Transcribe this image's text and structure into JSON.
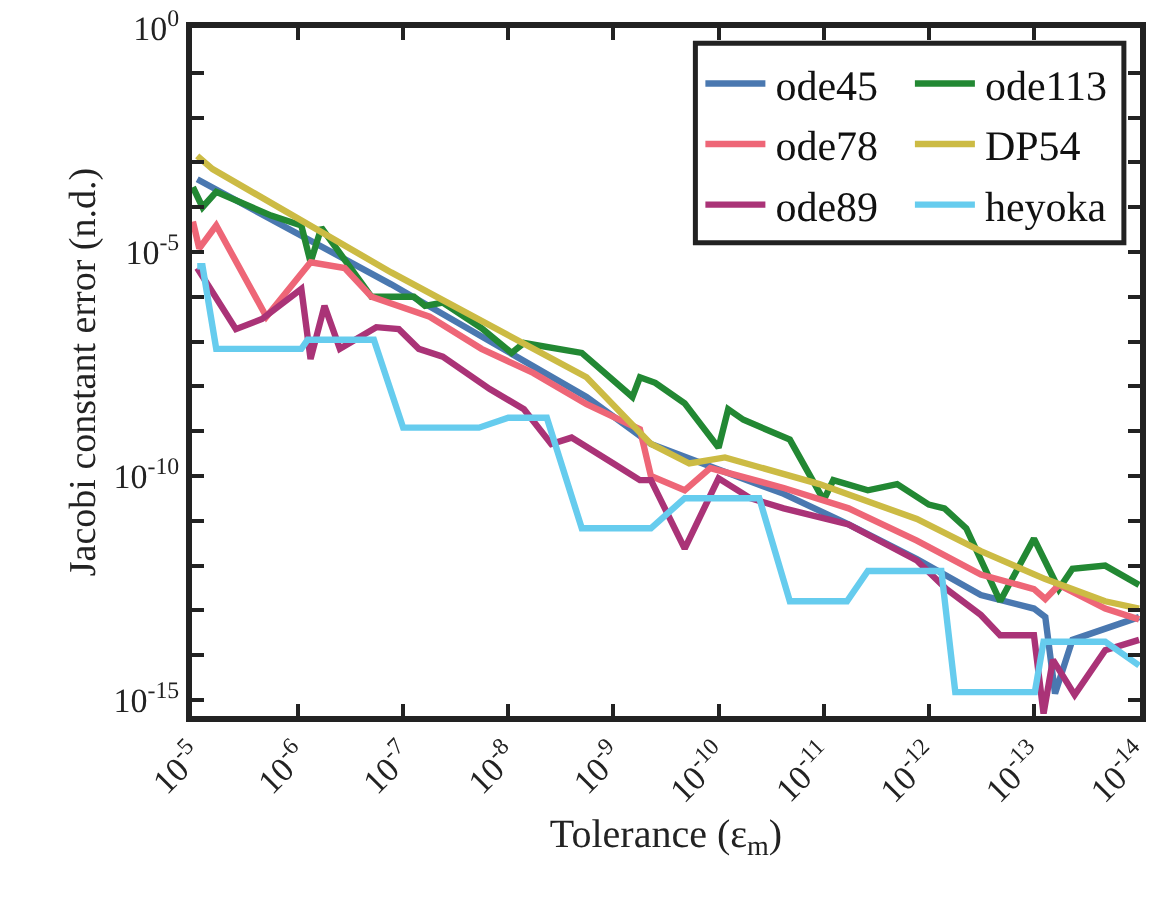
{
  "chart_data": {
    "type": "line",
    "xlabel": "Tolerance (ε$_{m}$)",
    "ylabel": "Jacobi constant error (n.d.)",
    "log": "xy",
    "legend": "top right",
    "line_style": "solid",
    "xlim": [
      1.02e-05,
      9.8e-15
    ],
    "ylim": [
      4.4e-16,
      1
    ],
    "xticks": [
      {
        "value": 1e-05,
        "label": "10$^{-5}$"
      },
      {
        "value": 1e-06,
        "label": "10$^{-6}$"
      },
      {
        "value": 1e-07,
        "label": "10$^{-7}$"
      },
      {
        "value": 1e-08,
        "label": "10$^{-8}$"
      },
      {
        "value": 1e-09,
        "label": "10$^{-9}$"
      },
      {
        "value": 1e-10,
        "label": "10$^{-10}$"
      },
      {
        "value": 1e-11,
        "label": "10$^{-11}$"
      },
      {
        "value": 1e-12,
        "label": "10$^{-12}$"
      },
      {
        "value": 1e-13,
        "label": "10$^{-13}$"
      },
      {
        "value": 1e-14,
        "label": "10$^{-14}$"
      }
    ],
    "yticks": [
      {
        "value": 1,
        "label": "10$^{0}$"
      },
      {
        "value": 0.1,
        "label": null
      },
      {
        "value": 0.01,
        "label": null
      },
      {
        "value": 0.001,
        "label": null
      },
      {
        "value": 0.0001,
        "label": null
      },
      {
        "value": 1e-05,
        "label": "10$^{-5}$"
      },
      {
        "value": 1e-06,
        "label": null
      },
      {
        "value": 1e-07,
        "label": null
      },
      {
        "value": 1e-08,
        "label": null
      },
      {
        "value": 1e-09,
        "label": null
      },
      {
        "value": 1e-10,
        "label": "10$^{-10}$"
      },
      {
        "value": 1e-11,
        "label": null
      },
      {
        "value": 1e-12,
        "label": null
      },
      {
        "value": 1e-13,
        "label": null
      },
      {
        "value": 1e-14,
        "label": null
      },
      {
        "value": 1e-15,
        "label": "10$^{-15}$"
      }
    ],
    "series": [
      {
        "name": "ode45",
        "color": "#4a78b0",
        "x": [
          9.1e-06,
          1.3e-07,
          1.8e-09,
          4.4e-10,
          1e-10,
          2.4e-11,
          5.8e-12,
          1.3e-12,
          3.2e-13,
          1e-13,
          7.8e-14,
          6.3e-14,
          4.3e-14,
          1e-14
        ],
        "values": [
          0.00042,
          1.9e-06,
          5.8e-09,
          5.2e-10,
          1.4e-10,
          4e-11,
          8.3e-12,
          1.4e-12,
          2.2e-13,
          1.1e-13,
          7.1e-14,
          1.4e-15,
          2.2e-14,
          7.1e-14
        ]
      },
      {
        "name": "ode113",
        "color": "#228833",
        "x": [
          1e-05,
          8.1e-06,
          6e-06,
          1.8e-06,
          9.3e-07,
          7.6e-07,
          6e-07,
          2e-07,
          7.9e-08,
          6.2e-08,
          4.2e-08,
          1.8e-08,
          9.3e-09,
          7.1e-09,
          2e-09,
          6.6e-10,
          5.6e-10,
          4e-10,
          2.1e-10,
          1e-10,
          8.1e-11,
          5.8e-11,
          2.1e-11,
          1e-11,
          8.1e-12,
          3.8e-12,
          2e-12,
          1e-12,
          7.1e-13,
          4.4e-13,
          2.1e-13,
          1e-13,
          5.8e-14,
          4.3e-14,
          2.1e-14,
          1e-14
        ],
        "values": [
          0.00028,
          0.0001,
          0.00022,
          6.5e-05,
          3.9e-05,
          5.9e-06,
          3.5e-05,
          1e-06,
          1e-06,
          6.3e-07,
          7.4e-07,
          2e-07,
          5.6e-08,
          9.3e-08,
          5.6e-08,
          5.8e-09,
          1.6e-08,
          1.2e-08,
          4.2e-09,
          4.3e-10,
          3.1e-09,
          1.8e-09,
          6.5e-10,
          2.9e-11,
          8.1e-11,
          4.8e-11,
          6.6e-11,
          2.3e-11,
          1.9e-11,
          6.8e-12,
          1.6e-13,
          4e-12,
          3e-13,
          8.5e-13,
          1e-12,
          3.7e-13
        ]
      },
      {
        "name": "ode78",
        "color": "#ee6677",
        "x": [
          1e-05,
          8.7e-06,
          6e-06,
          2e-06,
          7.6e-07,
          3.6e-07,
          2e-07,
          5.6e-08,
          1.8e-08,
          5.8e-09,
          1.8e-09,
          5.6e-10,
          4.4e-10,
          2.1e-10,
          1.2e-10,
          2.4e-11,
          5.8e-12,
          1.3e-12,
          3.2e-13,
          1e-13,
          7.8e-14,
          5.8e-14,
          2.1e-14,
          1e-14
        ],
        "values": [
          4.8e-05,
          1.2e-05,
          3.9e-05,
          3.6e-07,
          5.9e-06,
          4.4e-06,
          1e-06,
          3.6e-07,
          6.9e-08,
          2e-08,
          4e-09,
          1.1e-09,
          1e-10,
          4.8e-11,
          1.5e-10,
          5.4e-11,
          1.9e-11,
          3.6e-12,
          6.3e-13,
          3e-13,
          1.8e-13,
          3.7e-13,
          1.1e-13,
          6.3e-14
        ]
      },
      {
        "name": "DP54",
        "color": "#ccbb44",
        "x": [
          9.1e-06,
          6.5e-06,
          1.3e-07,
          1.8e-09,
          4.4e-10,
          1.9e-10,
          8.7e-11,
          1.1e-11,
          1.3e-12,
          3.2e-13,
          7.8e-14,
          2.1e-14,
          1e-14
        ],
        "values": [
          0.0014,
          0.00071,
          3.5e-06,
          1.6e-08,
          5.2e-10,
          1.9e-10,
          2.6e-10,
          6.6e-11,
          1.1e-11,
          2.1e-12,
          5e-13,
          1.6e-13,
          1.1e-13
        ]
      },
      {
        "name": "ode89",
        "color": "#aa3377",
        "x": [
          9.1e-06,
          3.9e-06,
          2.2e-06,
          9.3e-07,
          7.6e-07,
          5.6e-07,
          4e-07,
          1.8e-07,
          1.1e-07,
          7.1e-08,
          4.2e-08,
          1.5e-08,
          7.1e-09,
          3.9e-09,
          2.5e-09,
          1e-09,
          5.6e-10,
          4.4e-10,
          2.1e-10,
          1e-10,
          5e-11,
          2.4e-11,
          5.8e-12,
          1.3e-12,
          6.8e-13,
          3.2e-13,
          2.1e-13,
          1e-13,
          8.1e-14,
          6.6e-14,
          4.1e-14,
          2.1e-14,
          1e-14
        ],
        "values": [
          4.4e-06,
          1.9e-07,
          3.2e-07,
          1.5e-06,
          4.1e-08,
          6.3e-07,
          6.9e-08,
          2.1e-07,
          1.9e-07,
          6.9e-08,
          4.6e-08,
          8.7e-09,
          3.1e-09,
          5.2e-10,
          7.2e-10,
          1.9e-10,
          8.1e-11,
          8.1e-11,
          2.4e-12,
          8.9e-11,
          3.2e-11,
          1.9e-11,
          8.3e-12,
          1.3e-12,
          3e-13,
          7.9e-14,
          2.8e-14,
          2.8e-14,
          5e-16,
          7.9e-15,
          1.3e-15,
          1.3e-14,
          2.2e-14
        ]
      },
      {
        "name": "heyoka",
        "color": "#66ccee",
        "x": [
          9.1e-06,
          8.1e-06,
          6e-06,
          9.3e-07,
          8.1e-07,
          1.9e-07,
          1e-07,
          1.9e-08,
          1e-08,
          4.3e-09,
          2e-09,
          4.4e-10,
          2.1e-10,
          4.1e-11,
          2.1e-11,
          6e-12,
          3.8e-12,
          7.6e-13,
          5.6e-13,
          9.8e-14,
          8.1e-14,
          2.1e-14,
          1e-14
        ],
        "values": [
          4.8e-06,
          4.8e-06,
          6.9e-08,
          6.9e-08,
          1.1e-07,
          1.1e-07,
          1.2e-09,
          1.2e-09,
          2e-09,
          2e-09,
          6.8e-12,
          6.8e-12,
          3.2e-11,
          3.2e-11,
          1.6e-13,
          1.6e-13,
          7.6e-13,
          7.6e-13,
          1.5e-15,
          1.5e-15,
          2e-14,
          2e-14,
          5.9e-15
        ]
      }
    ]
  }
}
